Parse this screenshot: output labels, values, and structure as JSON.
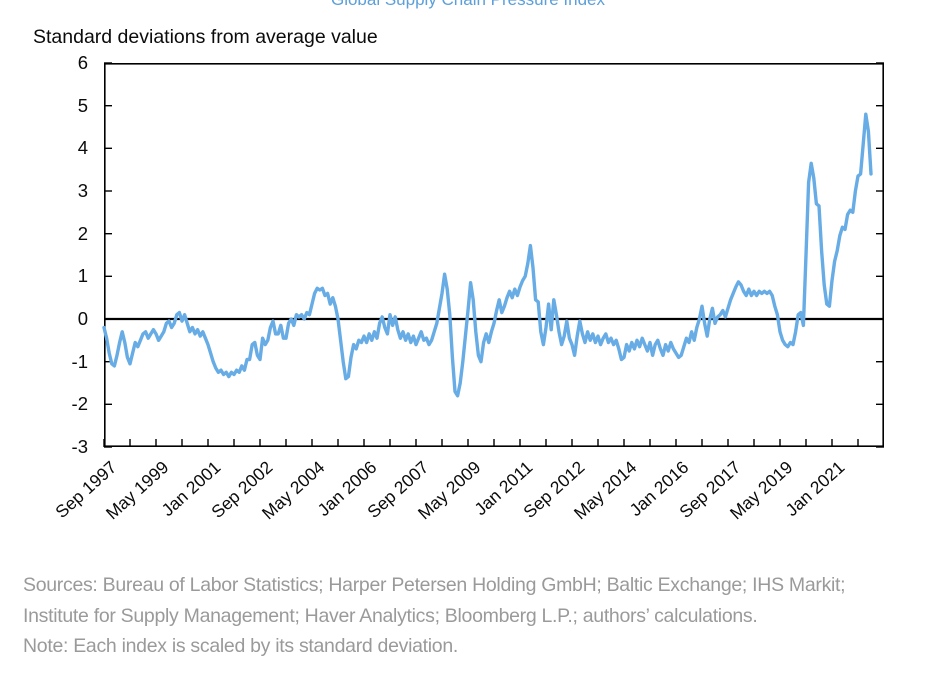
{
  "title": "Global Supply Chain Pressure Index",
  "subtitle": "Standard deviations from average value",
  "footer": {
    "line1": "Sources: Bureau of Labor Statistics; Harper Petersen Holding GmbH; Baltic Exchange; IHS Markit;",
    "line2": "Institute for Supply Management; Haver Analytics; Bloomberg L.P.; authors’ calculations.",
    "line3": "Note: Each index is scaled by its standard deviation."
  },
  "colors": {
    "line": "#67ace5",
    "title_text": "#5c9fd9",
    "axis": "#000000",
    "footer_text": "#9a9a9a",
    "background": "#ffffff"
  },
  "chart_data": {
    "type": "line",
    "title": "Global Supply Chain Pressure Index",
    "ylabel": "Standard deviations from average value",
    "ylim": [
      -3,
      6
    ],
    "y_ticks": [
      6,
      5,
      4,
      3,
      2,
      1,
      0,
      -1,
      -2,
      -3
    ],
    "zero_line": true,
    "grid": false,
    "legend": "none",
    "x_start": "Sep 1997",
    "x_end": "Apr 2022",
    "frequency": "monthly",
    "x_tick_labels": [
      "Sep 1997",
      "May 1999",
      "Jan 2001",
      "Sep 2002",
      "May 2004",
      "Jan 2006",
      "Sep 2007",
      "May 2009",
      "Jan 2011",
      "Sep 2012",
      "May 2014",
      "Jan 2016",
      "Sep 2017",
      "May 2019",
      "Jan 2021"
    ],
    "x_label_interval_months": 20,
    "x_minor_tick_interval_months": 10,
    "x_axis_total_months": 300,
    "series": [
      {
        "name": "Global Supply Chain Pressure Index",
        "unit": "standard deviations from average value",
        "values": [
          -0.2,
          -0.45,
          -0.8,
          -1.05,
          -1.1,
          -0.85,
          -0.55,
          -0.3,
          -0.55,
          -0.9,
          -1.05,
          -0.8,
          -0.55,
          -0.65,
          -0.5,
          -0.35,
          -0.3,
          -0.45,
          -0.35,
          -0.25,
          -0.35,
          -0.5,
          -0.4,
          -0.3,
          -0.1,
          -0.05,
          -0.2,
          -0.1,
          0.1,
          0.15,
          -0.05,
          0.1,
          -0.1,
          -0.3,
          -0.2,
          -0.35,
          -0.25,
          -0.4,
          -0.3,
          -0.45,
          -0.6,
          -0.8,
          -1.0,
          -1.15,
          -1.25,
          -1.2,
          -1.3,
          -1.25,
          -1.35,
          -1.25,
          -1.3,
          -1.2,
          -1.25,
          -1.1,
          -1.2,
          -0.95,
          -0.95,
          -0.6,
          -0.55,
          -0.85,
          -0.95,
          -0.45,
          -0.6,
          -0.5,
          -0.2,
          -0.05,
          -0.35,
          -0.35,
          -0.15,
          -0.45,
          -0.45,
          -0.1,
          0.0,
          -0.15,
          0.1,
          0.05,
          0.1,
          0.0,
          0.15,
          0.1,
          0.35,
          0.6,
          0.72,
          0.68,
          0.72,
          0.55,
          0.6,
          0.35,
          0.5,
          0.3,
          0.0,
          -0.5,
          -1.0,
          -1.4,
          -1.35,
          -0.9,
          -0.6,
          -0.7,
          -0.5,
          -0.55,
          -0.4,
          -0.55,
          -0.35,
          -0.5,
          -0.3,
          -0.45,
          -0.1,
          0.05,
          -0.2,
          -0.35,
          0.1,
          -0.15,
          0.05,
          -0.25,
          -0.45,
          -0.3,
          -0.5,
          -0.35,
          -0.55,
          -0.4,
          -0.6,
          -0.45,
          -0.3,
          -0.5,
          -0.45,
          -0.6,
          -0.5,
          -0.3,
          -0.1,
          0.25,
          0.6,
          1.05,
          0.7,
          0.1,
          -0.9,
          -1.7,
          -1.8,
          -1.5,
          -1.0,
          -0.4,
          0.2,
          0.85,
          0.45,
          -0.3,
          -0.85,
          -1.0,
          -0.55,
          -0.35,
          -0.55,
          -0.3,
          -0.1,
          0.2,
          0.45,
          0.15,
          0.3,
          0.5,
          0.65,
          0.5,
          0.7,
          0.55,
          0.75,
          0.9,
          1.0,
          1.3,
          1.72,
          1.2,
          0.45,
          0.4,
          -0.3,
          -0.6,
          -0.2,
          0.35,
          -0.25,
          0.45,
          0.1,
          -0.3,
          -0.6,
          -0.4,
          -0.05,
          -0.45,
          -0.6,
          -0.85,
          -0.4,
          -0.05,
          -0.35,
          -0.55,
          -0.3,
          -0.5,
          -0.35,
          -0.55,
          -0.4,
          -0.6,
          -0.45,
          -0.35,
          -0.55,
          -0.45,
          -0.6,
          -0.5,
          -0.7,
          -0.95,
          -0.9,
          -0.6,
          -0.75,
          -0.55,
          -0.7,
          -0.5,
          -0.65,
          -0.45,
          -0.6,
          -0.75,
          -0.55,
          -0.85,
          -0.6,
          -0.5,
          -0.7,
          -0.85,
          -0.6,
          -0.75,
          -0.55,
          -0.7,
          -0.8,
          -0.9,
          -0.85,
          -0.65,
          -0.45,
          -0.55,
          -0.3,
          -0.5,
          -0.2,
          0.0,
          0.3,
          -0.1,
          -0.4,
          0.0,
          0.25,
          -0.1,
          0.05,
          0.1,
          0.2,
          0.05,
          0.25,
          0.45,
          0.6,
          0.75,
          0.87,
          0.8,
          0.65,
          0.55,
          0.7,
          0.55,
          0.65,
          0.55,
          0.65,
          0.6,
          0.65,
          0.6,
          0.65,
          0.55,
          0.3,
          0.1,
          -0.3,
          -0.5,
          -0.6,
          -0.65,
          -0.55,
          -0.6,
          -0.3,
          0.1,
          0.15,
          -0.15,
          1.5,
          3.2,
          3.65,
          3.3,
          2.7,
          2.65,
          1.6,
          0.8,
          0.35,
          0.3,
          0.9,
          1.35,
          1.6,
          1.95,
          2.15,
          2.1,
          2.45,
          2.55,
          2.5,
          3.0,
          3.35,
          3.4,
          4.1,
          4.8,
          4.4,
          3.4
        ]
      }
    ]
  }
}
